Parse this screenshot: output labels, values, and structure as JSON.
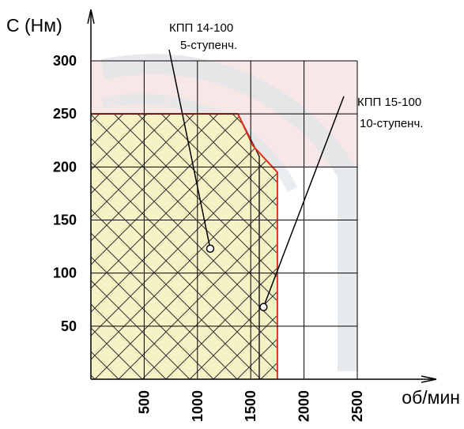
{
  "chart_data": {
    "type": "area",
    "ylabel": "С (Нм)",
    "xlabel": "об/мин",
    "xlim": [
      0,
      2500
    ],
    "ylim": [
      0,
      300
    ],
    "x_ticks": [
      500,
      1000,
      1500,
      2000,
      2500
    ],
    "y_ticks": [
      50,
      100,
      150,
      200,
      250,
      300
    ],
    "grid": true,
    "series": [
      {
        "name": "КПП 14-100 5-ступенч.",
        "x": [
          0,
          1380,
          1580,
          1580,
          0
        ],
        "y": [
          250,
          250,
          210,
          0,
          0
        ]
      },
      {
        "name": "КПП 15-100 10-ступенч.",
        "x": [
          0,
          1380,
          1520,
          1750,
          1750,
          1750
        ],
        "y": [
          250,
          250,
          220,
          195,
          105,
          0
        ]
      }
    ],
    "annotations": [
      {
        "line1": "КПП 14-100",
        "line2": "5-ступенч.",
        "x": 1120,
        "y": 123
      },
      {
        "line1": "КПП 15-100",
        "line2": "10-ступенч.",
        "x": 1620,
        "y": 68
      }
    ],
    "colors": {
      "fill": "#f7f1c6",
      "hatch": "#333333",
      "border": "#e53020",
      "background_band": "#f7e7e7",
      "watermark": "#e1e5e8",
      "grid": "#000000"
    }
  }
}
